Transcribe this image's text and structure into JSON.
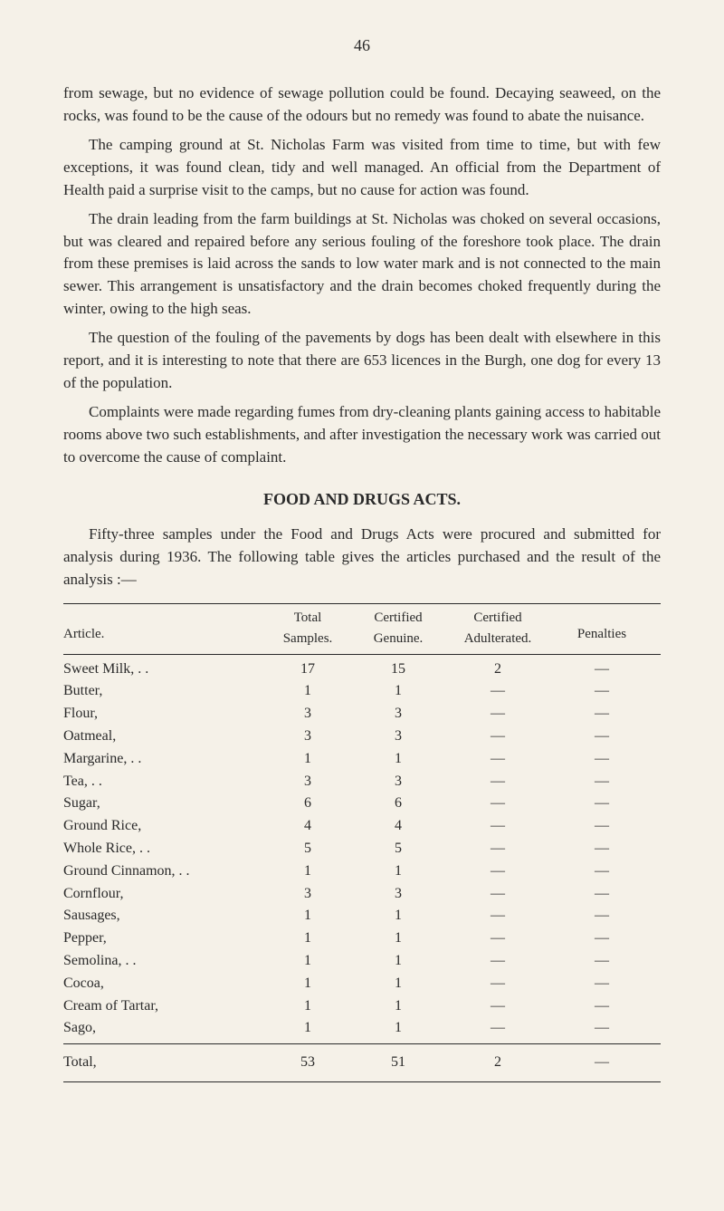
{
  "page_number": "46",
  "paragraphs": {
    "p1": "from sewage, but no evidence of sewage pollution could be found. Decaying seaweed, on the rocks, was found to be the cause of the odours but no remedy was found to abate the nuisance.",
    "p2": "The camping ground at St. Nicholas Farm was visited from time to time, but with few exceptions, it was found clean, tidy and well managed. An official from the Department of Health paid a surprise visit to the camps, but no cause for action was found.",
    "p3": "The drain leading from the farm buildings at St. Nicholas was choked on several occasions, but was cleared and repaired before any serious fouling of the foreshore took place. The drain from these premises is laid across the sands to low water mark and is not connected to the main sewer. This arrangement is unsatisfactory and the drain becomes choked frequently during the winter, owing to the high seas.",
    "p4": "The question of the fouling of the pavements by dogs has been dealt with elsewhere in this report, and it is interesting to note that there are 653 licences in the Burgh, one dog for every 13 of the population.",
    "p5": "Complaints were made regarding fumes from dry-cleaning plants gaining access to habitable rooms above two such establishments, and after investigation the necessary work was carried out to overcome the cause of complaint."
  },
  "section_title": "FOOD AND DRUGS ACTS.",
  "section_intro": "Fifty-three samples under the Food and Drugs Acts were procured and submitted for analysis during 1936. The following table gives the articles purchased and the result of the analysis :—",
  "table": {
    "headers": {
      "article": "Article.",
      "total": "Total\nSamples.",
      "certified_genuine": "Certified\nGenuine.",
      "certified_adulterated": "Certified\nAdulterated.",
      "penalties": "Penalties"
    },
    "rows": [
      {
        "article": "Sweet Milk, . .",
        "total": "17",
        "genuine": "15",
        "adulterated": "2",
        "penalties": "—"
      },
      {
        "article": "Butter,",
        "total": "1",
        "genuine": "1",
        "adulterated": "—",
        "penalties": "—"
      },
      {
        "article": "Flour,",
        "total": "3",
        "genuine": "3",
        "adulterated": "—",
        "penalties": "—"
      },
      {
        "article": "Oatmeal,",
        "total": "3",
        "genuine": "3",
        "adulterated": "—",
        "penalties": "—"
      },
      {
        "article": "Margarine, . .",
        "total": "1",
        "genuine": "1",
        "adulterated": "—",
        "penalties": "—"
      },
      {
        "article": "Tea, . .",
        "total": "3",
        "genuine": "3",
        "adulterated": "—",
        "penalties": "—"
      },
      {
        "article": "Sugar,",
        "total": "6",
        "genuine": "6",
        "adulterated": "—",
        "penalties": "—"
      },
      {
        "article": "Ground Rice,",
        "total": "4",
        "genuine": "4",
        "adulterated": "—",
        "penalties": "—"
      },
      {
        "article": "Whole Rice, . .",
        "total": "5",
        "genuine": "5",
        "adulterated": "—",
        "penalties": "—"
      },
      {
        "article": "Ground Cinnamon, . .",
        "total": "1",
        "genuine": "1",
        "adulterated": "—",
        "penalties": "—"
      },
      {
        "article": "Cornflour,",
        "total": "3",
        "genuine": "3",
        "adulterated": "—",
        "penalties": "—"
      },
      {
        "article": "Sausages,",
        "total": "1",
        "genuine": "1",
        "adulterated": "—",
        "penalties": "—"
      },
      {
        "article": "Pepper,",
        "total": "1",
        "genuine": "1",
        "adulterated": "—",
        "penalties": "—"
      },
      {
        "article": "Semolina, . .",
        "total": "1",
        "genuine": "1",
        "adulterated": "—",
        "penalties": "—"
      },
      {
        "article": "Cocoa,",
        "total": "1",
        "genuine": "1",
        "adulterated": "—",
        "penalties": "—"
      },
      {
        "article": "Cream of Tartar,",
        "total": "1",
        "genuine": "1",
        "adulterated": "—",
        "penalties": "—"
      },
      {
        "article": "Sago,",
        "total": "1",
        "genuine": "1",
        "adulterated": "—",
        "penalties": "—"
      }
    ],
    "total_row": {
      "article": "Total,",
      "total": "53",
      "genuine": "51",
      "adulterated": "2",
      "penalties": "—"
    }
  },
  "colors": {
    "background": "#f5f1e8",
    "text": "#2a2a2a",
    "line": "#2a2a2a"
  },
  "typography": {
    "body_fontsize": 17,
    "table_fontsize": 16,
    "title_fontsize": 18,
    "font_family": "Georgia, Times New Roman, serif"
  }
}
